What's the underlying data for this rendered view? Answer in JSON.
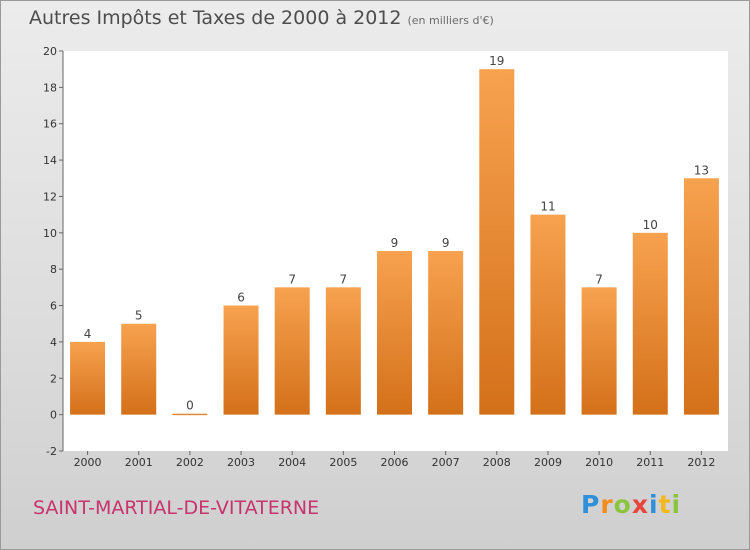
{
  "chart_data": {
    "type": "bar",
    "title": "Autres Impôts et Taxes de 2000 à 2012",
    "subtitle": "(en milliers d'€)",
    "categories": [
      "2000",
      "2001",
      "2002",
      "2003",
      "2004",
      "2005",
      "2006",
      "2007",
      "2008",
      "2009",
      "2010",
      "2011",
      "2012"
    ],
    "values": [
      4,
      5,
      0,
      6,
      7,
      7,
      9,
      9,
      19,
      11,
      7,
      10,
      13
    ],
    "data_labels": [
      "4",
      "5",
      "0",
      "6",
      "7",
      "7",
      "9",
      "9",
      "19",
      "11",
      "7",
      "10",
      "13"
    ],
    "ylim": [
      -2,
      20
    ],
    "yticks": [
      -2,
      0,
      2,
      4,
      6,
      8,
      10,
      12,
      14,
      16,
      18,
      20
    ],
    "ytick_labels": [
      "-2",
      "0",
      "2",
      "4",
      "6",
      "8",
      "10",
      "12",
      "14",
      "16",
      "18",
      "20"
    ],
    "grid": false,
    "bar_color_top": "#f7a24f",
    "bar_color_bottom": "#d4701a"
  },
  "footer": {
    "commune": "SAINT-MARTIAL-DE-VITATERNE",
    "logo_letters": [
      "P",
      "r",
      "o",
      "x",
      "i",
      "t",
      "i"
    ]
  }
}
